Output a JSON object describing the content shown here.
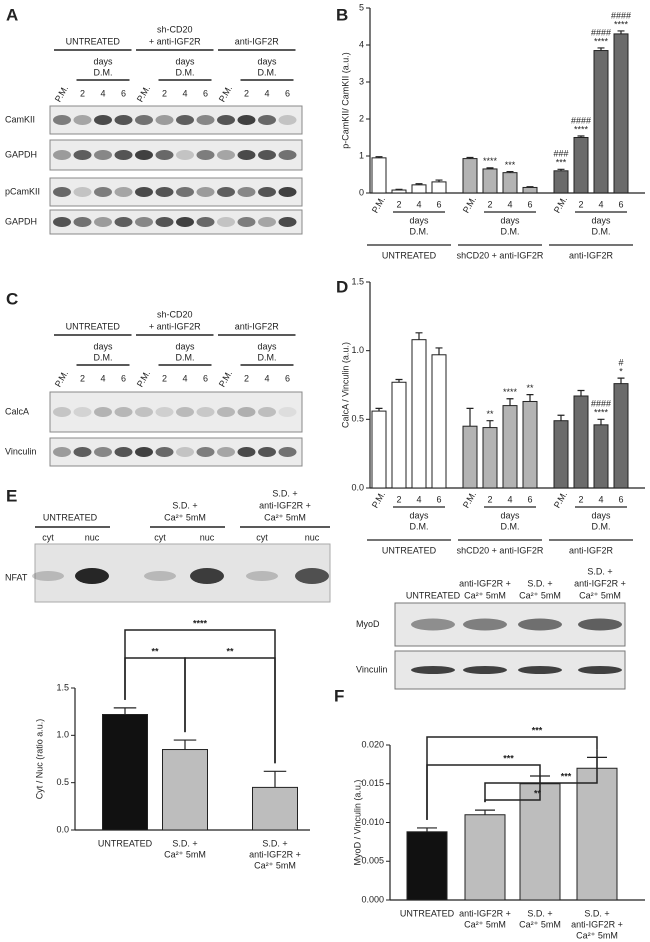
{
  "panel_letters": [
    "A",
    "B",
    "C",
    "D",
    "E",
    "F"
  ],
  "blots": {
    "A": {
      "groups": [
        [
          "UNTREATED"
        ],
        [
          "sh-CD20",
          "+ anti-IGF2R"
        ],
        [
          "anti-IGF2R"
        ]
      ],
      "days": [
        "days",
        "D.M."
      ],
      "lanes": [
        "P.M.",
        "2",
        "4",
        "6"
      ],
      "rows": [
        "CamKII",
        "GAPDH",
        "pCamKII",
        "GAPDH"
      ]
    },
    "C": {
      "groups": [
        [
          "UNTREATED"
        ],
        [
          "sh-CD20",
          "+ anti-IGF2R"
        ],
        [
          "anti-IGF2R"
        ]
      ],
      "days": [
        "days",
        "D.M."
      ],
      "lanes": [
        "P.M.",
        "2",
        "4",
        "6"
      ],
      "rows": [
        "CalcA",
        "Vinculin"
      ]
    },
    "E": {
      "groups": [
        [
          "UNTREATED"
        ],
        [
          "S.D. +",
          "Ca²⁺ 5mM"
        ],
        [
          "S.D. +",
          "anti-IGF2R +",
          "Ca²⁺ 5mM"
        ]
      ],
      "lanes": [
        "cyt",
        "nuc"
      ],
      "rows": [
        "NFAT"
      ]
    },
    "F": {
      "columns": [
        [
          "UNTREATED"
        ],
        [
          "anti-IGF2R +",
          "Ca²⁺ 5mM"
        ],
        [
          "S.D. +",
          "Ca²⁺ 5mM"
        ],
        [
          "S.D. +",
          "anti-IGF2R +",
          "Ca²⁺ 5mM"
        ]
      ],
      "rows": [
        "MyoD",
        "Vinculin"
      ]
    }
  },
  "chart_data": [
    {
      "type": "bar",
      "ylabel": "p-CamKII/ CamKII (a.u.)",
      "ylim": [
        0,
        5
      ],
      "yticks": [
        0,
        1,
        2,
        3,
        4,
        5
      ],
      "days": [
        "days",
        "D.M."
      ],
      "groups": [
        {
          "name": "UNTREATED",
          "color": "#ffffff",
          "categories": [
            "P.M.",
            "2",
            "4",
            "6"
          ],
          "values": [
            0.95,
            0.08,
            0.22,
            0.3
          ],
          "errors": [
            0.03,
            0.02,
            0.03,
            0.05
          ],
          "annotations": [
            null,
            null,
            null,
            null
          ]
        },
        {
          "name": "shCD20 + anti-IGF2R",
          "color": "#b3b3b3",
          "categories": [
            "P.M.",
            "2",
            "4",
            "6"
          ],
          "values": [
            0.93,
            0.65,
            0.55,
            0.15
          ],
          "errors": [
            0.03,
            0.03,
            0.03,
            0.02
          ],
          "annotations": [
            null,
            [
              "****"
            ],
            [
              "***"
            ],
            null
          ]
        },
        {
          "name": "anti-IGF2R",
          "color": "#6b6b6b",
          "categories": [
            "P.M.",
            "2",
            "4",
            "6"
          ],
          "values": [
            0.6,
            1.5,
            3.85,
            4.3
          ],
          "errors": [
            0.04,
            0.04,
            0.07,
            0.08
          ],
          "annotations": [
            [
              "###",
              "***"
            ],
            [
              "####",
              "****"
            ],
            [
              "####",
              "****"
            ],
            [
              "####",
              "****"
            ]
          ]
        }
      ]
    },
    {
      "type": "bar",
      "ylabel": "CalcA / Vinculin (a.u.)",
      "ylim": [
        0,
        1.5
      ],
      "yticks": [
        {
          "value": 0,
          "label": "0.0"
        },
        {
          "value": 0.5,
          "label": "0.5"
        },
        {
          "value": 1,
          "label": "1.0"
        },
        {
          "value": 1.5,
          "label": "1.5"
        }
      ],
      "days": [
        "days",
        "D.M."
      ],
      "groups": [
        {
          "name": "UNTREATED",
          "color": "#ffffff",
          "categories": [
            "P.M.",
            "2",
            "4",
            "6"
          ],
          "values": [
            0.56,
            0.77,
            1.08,
            0.97
          ],
          "errors": [
            0.02,
            0.02,
            0.05,
            0.05
          ],
          "annotations": [
            null,
            null,
            null,
            null
          ]
        },
        {
          "name": "shCD20 + anti-IGF2R",
          "color": "#b3b3b3",
          "categories": [
            "P.M.",
            "2",
            "4",
            "6"
          ],
          "values": [
            0.45,
            0.44,
            0.6,
            0.63
          ],
          "errors": [
            0.13,
            0.05,
            0.05,
            0.05
          ],
          "annotations": [
            null,
            [
              "**"
            ],
            [
              "****"
            ],
            [
              "**"
            ]
          ]
        },
        {
          "name": "anti-IGF2R",
          "color": "#6b6b6b",
          "categories": [
            "P.M.",
            "2",
            "4",
            "6"
          ],
          "values": [
            0.49,
            0.67,
            0.46,
            0.76
          ],
          "errors": [
            0.04,
            0.04,
            0.04,
            0.04
          ],
          "annotations": [
            null,
            null,
            [
              "####",
              "****"
            ],
            [
              "#",
              "*"
            ]
          ]
        }
      ]
    },
    {
      "type": "bar",
      "ylabel": "Cyt / Nuc (ratio a.u.)",
      "ylim": [
        0,
        1.5
      ],
      "yticks": [
        {
          "value": 0,
          "label": "0.0"
        },
        {
          "value": 0.5,
          "label": "0.5"
        },
        {
          "value": 1,
          "label": "1.0"
        },
        {
          "value": 1.5,
          "label": "1.5"
        }
      ],
      "categories": [
        [
          "UNTREATED"
        ],
        [
          "S.D. +",
          "Ca²⁺ 5mM"
        ],
        [
          "S.D. +",
          "anti-IGF2R +",
          "Ca²⁺ 5mM"
        ]
      ],
      "values": [
        1.22,
        0.85,
        0.45
      ],
      "errors": [
        0.07,
        0.1,
        0.17
      ],
      "colors": [
        "#111111",
        "#bdbdbd",
        "#bdbdbd"
      ],
      "brackets": [
        {
          "from": 0,
          "to": 1,
          "label": "**"
        },
        {
          "from": 1,
          "to": 2,
          "label": "**"
        },
        {
          "from": 0,
          "to": 2,
          "label": "****"
        }
      ]
    },
    {
      "type": "bar",
      "ylabel": "MyoD / Vinculin (a.u.)",
      "ylim": [
        0,
        0.02
      ],
      "yticks": [
        {
          "value": 0,
          "label": "0.000"
        },
        {
          "value": 0.005,
          "label": "0.005"
        },
        {
          "value": 0.01,
          "label": "0.010"
        },
        {
          "value": 0.015,
          "label": "0.015"
        },
        {
          "value": 0.02,
          "label": "0.020"
        }
      ],
      "categories": [
        [
          "UNTREATED"
        ],
        [
          "anti-IGF2R +",
          "Ca²⁺ 5mM"
        ],
        [
          "S.D. +",
          "Ca²⁺ 5mM"
        ],
        [
          "S.D. +",
          "anti-IGF2R +",
          "Ca²⁺ 5mM"
        ]
      ],
      "values": [
        0.0088,
        0.011,
        0.015,
        0.017
      ],
      "errors": [
        0.0005,
        0.0006,
        0.001,
        0.0014
      ],
      "colors": [
        "#111111",
        "#bdbdbd",
        "#bdbdbd",
        "#bdbdbd"
      ],
      "brackets": [
        {
          "from": 0,
          "to": 3,
          "label": "***"
        },
        {
          "from": 0,
          "to": 2,
          "label": "***"
        },
        {
          "from": 1,
          "to": 3,
          "label": "***"
        },
        {
          "from": 1,
          "to": 2,
          "label": "**"
        }
      ]
    }
  ]
}
